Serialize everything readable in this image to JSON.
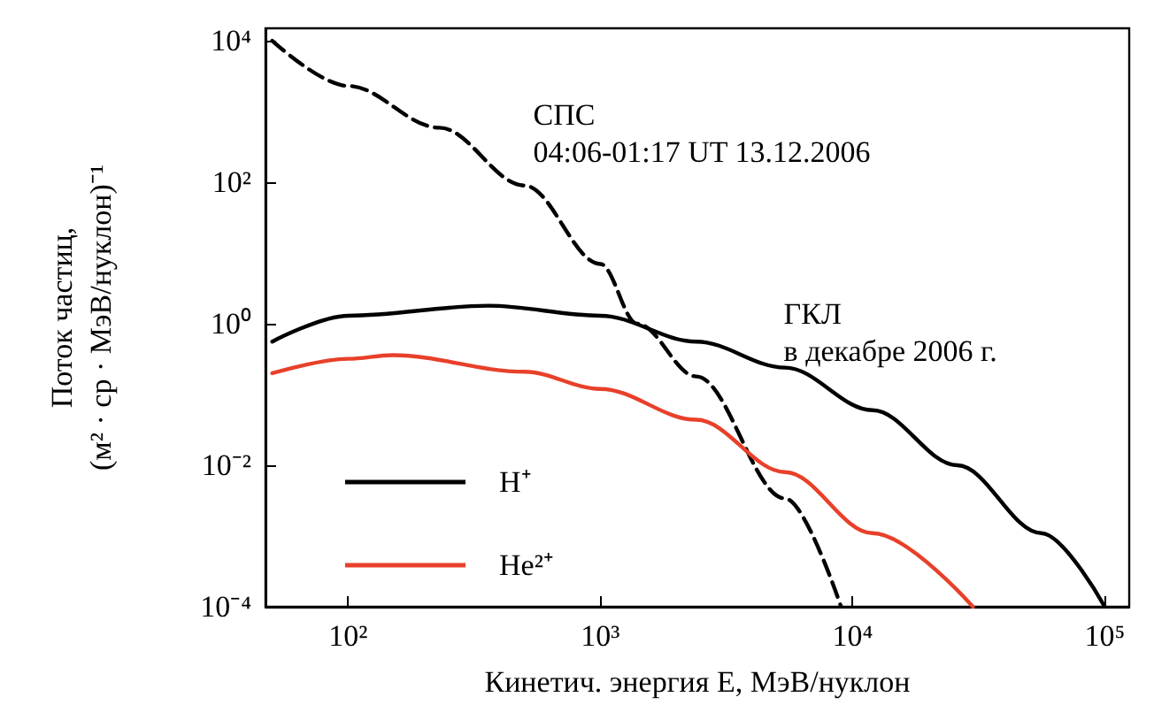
{
  "chart_data": {
    "type": "line",
    "xlabel": "Кинетич. энергия E, МэВ/нуклон",
    "ylabel": "Поток частиц,\n(м² · ср · МэВ/нуклон)⁻¹",
    "log": "xy",
    "xlim": [
      47,
      125000
    ],
    "ylim": [
      0.0001,
      15000
    ],
    "xticks": [
      {
        "value": 100,
        "label": "10²"
      },
      {
        "value": 1000,
        "label": "10³"
      },
      {
        "value": 10000,
        "label": "10⁴"
      },
      {
        "value": 100000,
        "label": "10⁵"
      }
    ],
    "yticks": [
      {
        "value": 0.0001,
        "label": "10⁻⁴"
      },
      {
        "value": 0.01,
        "label": "10⁻²"
      },
      {
        "value": 1,
        "label": "10⁰"
      },
      {
        "value": 100,
        "label": "10²"
      },
      {
        "value": 10000,
        "label": "10⁴"
      }
    ],
    "grid": false,
    "legend": "bottom left",
    "marker": "none",
    "annotations": [
      "СПС\n04:06-01:17 UT 13.12.2006",
      "ГКЛ\nв декабре 2006 г."
    ],
    "series": [
      {
        "color": "#000000",
        "line_style": "dashed",
        "x": [
          50,
          100,
          230,
          500,
          1000,
          1400,
          2400,
          5400,
          9000
        ],
        "values": [
          10000,
          2300,
          590,
          90,
          7,
          1,
          0.18,
          0.0034,
          0.0001
        ]
      },
      {
        "name": "H⁺",
        "color": "#000000",
        "line_style": "solid",
        "x": [
          50,
          100,
          360,
          1000,
          2400,
          5400,
          12000,
          26000,
          56000,
          100000
        ],
        "values": [
          0.56,
          1.3,
          1.8,
          1.3,
          0.56,
          0.24,
          0.06,
          0.01,
          0.0011,
          0.0001
        ]
      },
      {
        "name": "He²⁺",
        "color": "#e8402a",
        "line_style": "solid",
        "x": [
          50,
          100,
          150,
          500,
          1000,
          2400,
          5400,
          12000,
          30000
        ],
        "values": [
          0.2,
          0.32,
          0.36,
          0.21,
          0.12,
          0.044,
          0.008,
          0.0011,
          0.0001
        ]
      }
    ]
  }
}
